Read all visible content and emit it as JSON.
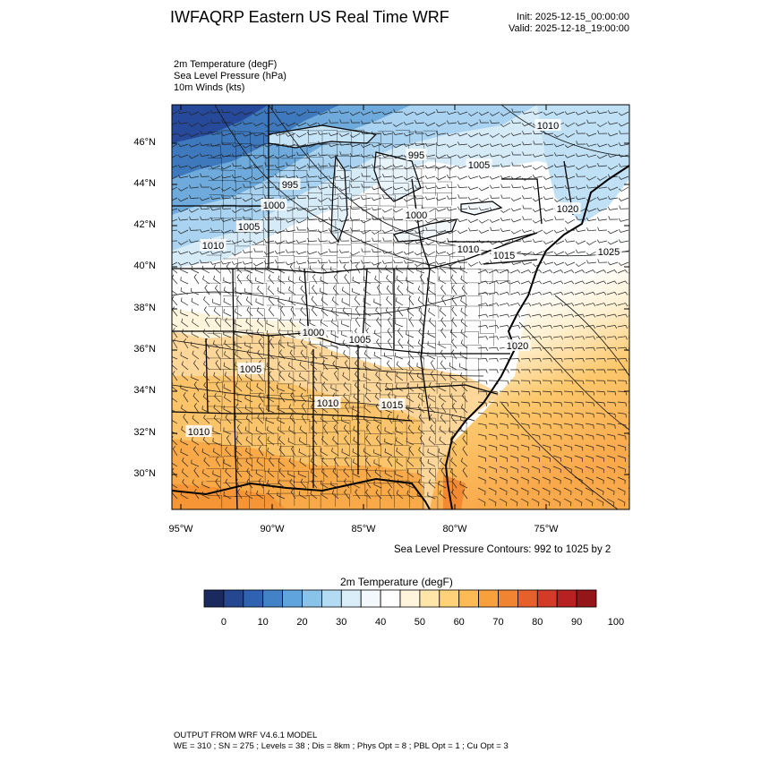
{
  "header": {
    "title": "IWFAQRP Eastern US Real Time WRF",
    "init": "Init: 2025-12-15_00:00:00",
    "valid": "Valid: 2025-12-18_19:00:00"
  },
  "variables": [
    "2m Temperature   (degF)",
    "Sea Level Pressure   (hPa)",
    "10m Winds   (kts)"
  ],
  "map": {
    "lat_labels": [
      "46°N",
      "44°N",
      "42°N",
      "40°N",
      "38°N",
      "36°N",
      "34°N",
      "32°N",
      "30°N"
    ],
    "lon_labels": [
      "95°W",
      "90°W",
      "85°W",
      "80°W",
      "75°W"
    ],
    "pressure_labels": [
      "1010",
      "995",
      "1005",
      "995",
      "1000",
      "1000",
      "1005",
      "1010",
      "1020",
      "1025",
      "1010",
      "1015",
      "1000",
      "1005",
      "1020",
      "1005",
      "1010",
      "1015",
      "1010"
    ],
    "contour_note": "Sea Level Pressure Contours: 992 to 1025 by 2"
  },
  "colorbar": {
    "title": "2m Temperature  (degF)",
    "labels": [
      "0",
      "10",
      "20",
      "30",
      "40",
      "50",
      "60",
      "70",
      "80",
      "90",
      "100"
    ],
    "colors": [
      "#1a2a5e",
      "#24478f",
      "#2f62b0",
      "#4283c8",
      "#5fa4dc",
      "#89c3ea",
      "#b4dbf4",
      "#daeefa",
      "#f2f8fc",
      "#ffffff",
      "#fff5dd",
      "#ffe6a8",
      "#ffd27a",
      "#fdba55",
      "#f8a03c",
      "#f18432",
      "#e5602b",
      "#d23b27",
      "#b82121",
      "#951619"
    ]
  },
  "footer": {
    "line1": "OUTPUT FROM WRF V4.6.1 MODEL",
    "line2": "WE = 310 ; SN = 275 ; Levels = 38 ; Dis = 8km ; Phys Opt = 8 ; PBL Opt = 1 ; Cu Opt = 3"
  }
}
